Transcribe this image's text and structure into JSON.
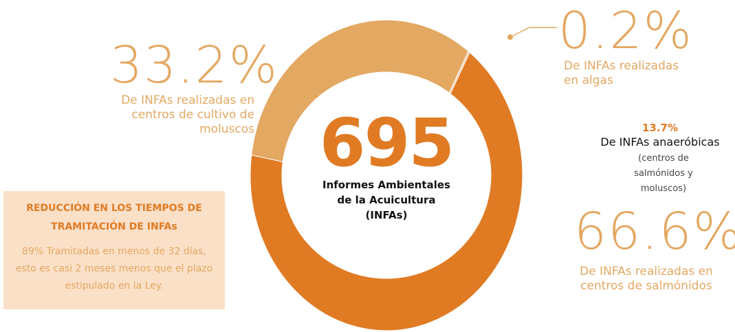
{
  "chart_data": {
    "type": "pie",
    "donut": true,
    "categories": [
      "De INFAs realizadas en algas",
      "De INFAs realizadas en centros de salmónidos",
      "De INFAs realizadas en centros de cultivo de moluscos"
    ],
    "values": [
      0.2,
      66.6,
      33.2
    ],
    "value_labels": [
      "0.2%",
      "66.6%",
      "33.2%"
    ],
    "colors": [
      "#f0c898",
      "#e07b24",
      "#e3a862"
    ],
    "total": 695,
    "center_label": "Informes Ambientales de la Acuicultura (INFAs)",
    "annotation": {
      "value_label": "13.7%",
      "title": "De INFAs anaeróbicas",
      "text": "(centros de salmónidos y moluscos)"
    },
    "box": {
      "title": "REDUCCIÓN EN LOS TIEMPOS DE TRAMITACIÓN DE INFAs",
      "text": "89% Tramitadas en menos de 32 días, esto es casi 2 meses menos que el plazo estipulado en la  Ley."
    }
  }
}
